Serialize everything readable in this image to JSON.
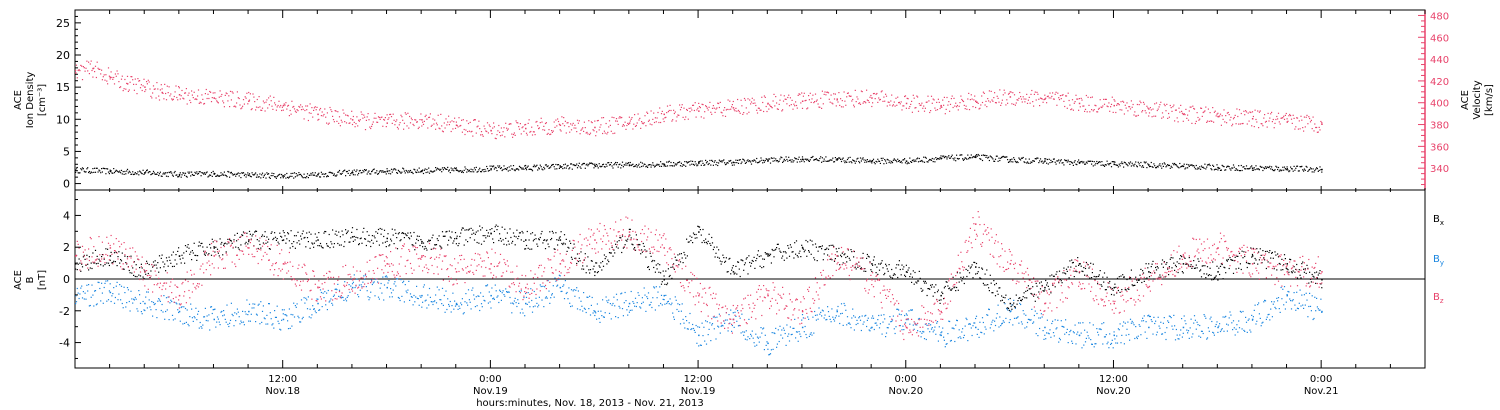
{
  "colors": {
    "axes": "#000000",
    "density": "#000000",
    "velocity": "#e8436b",
    "bx": "#000000",
    "by": "#1a86e0",
    "bz": "#e8436b",
    "zero_line": "#000000"
  },
  "chart_data": [
    {
      "type": "scatter",
      "panel": "top",
      "xaxis": {
        "tick_labels": [
          {
            "time": "12:00",
            "date": "Nov.18",
            "x": 12
          },
          {
            "time": "0:00",
            "date": "Nov.19",
            "x": 24
          },
          {
            "time": "12:00",
            "date": "Nov.19",
            "x": 36
          },
          {
            "time": "0:00",
            "date": "Nov.20",
            "x": 48
          },
          {
            "time": "12:00",
            "date": "Nov.20",
            "x": 60
          },
          {
            "time": "0:00",
            "date": "Nov.21",
            "x": 72
          }
        ],
        "xlim_hours_from_nov18_0000": [
          0,
          78
        ],
        "xlabel": "hours:minutes, Nov. 18, 2013 - Nov. 21, 2013"
      },
      "left_axis": {
        "label_lines": [
          "ACE",
          "Ion Density",
          "[cm⁻³]"
        ],
        "ylim": [
          -1,
          27
        ],
        "ticks": [
          0,
          5,
          10,
          15,
          20,
          25
        ]
      },
      "right_axis": {
        "label_lines": [
          "ACE",
          "Velocity",
          "[km/s]"
        ],
        "ylim": [
          320,
          485
        ],
        "ticks": [
          340,
          360,
          380,
          400,
          420,
          440,
          460,
          480
        ]
      },
      "series": [
        {
          "key": "density",
          "axis": "left",
          "x": [
            0,
            2,
            4,
            6,
            8,
            10,
            12,
            14,
            16,
            18,
            20,
            22,
            24,
            26,
            28,
            30,
            32,
            34,
            36,
            38,
            40,
            42,
            44,
            46,
            48,
            50,
            52,
            54,
            56,
            58,
            60,
            62,
            64,
            66,
            68,
            70,
            72
          ],
          "y": [
            2.2,
            2.0,
            1.8,
            1.5,
            1.6,
            1.4,
            1.3,
            1.5,
            1.8,
            2.0,
            2.1,
            2.2,
            2.4,
            2.5,
            2.7,
            2.9,
            3.0,
            3.1,
            3.3,
            3.4,
            3.7,
            3.9,
            3.8,
            3.6,
            3.6,
            4.0,
            4.2,
            3.8,
            3.6,
            3.3,
            3.1,
            3.0,
            2.8,
            2.6,
            2.5,
            2.4,
            2.3
          ],
          "spread": 0.45
        },
        {
          "key": "velocity",
          "axis": "right",
          "x": [
            0,
            1,
            2,
            3,
            4,
            5,
            6,
            8,
            10,
            12,
            14,
            16,
            18,
            20,
            22,
            24,
            26,
            28,
            30,
            32,
            34,
            36,
            38,
            40,
            42,
            44,
            46,
            48,
            50,
            52,
            54,
            56,
            58,
            60,
            62,
            64,
            66,
            68,
            70,
            72
          ],
          "y": [
            428,
            432,
            424,
            418,
            415,
            410,
            408,
            405,
            402,
            398,
            390,
            385,
            382,
            385,
            380,
            375,
            377,
            380,
            378,
            382,
            390,
            393,
            396,
            400,
            402,
            404,
            405,
            400,
            398,
            402,
            406,
            404,
            400,
            398,
            395,
            390,
            388,
            386,
            383,
            381
          ],
          "spread": 8
        }
      ]
    },
    {
      "type": "scatter",
      "panel": "bottom",
      "left_axis": {
        "label_lines": [
          "ACE",
          "B",
          "[nT]"
        ],
        "ylim": [
          -5.6,
          5.6
        ],
        "ticks": [
          -4,
          -2,
          0,
          2,
          4
        ]
      },
      "legend": {
        "placement": "right",
        "entries": [
          {
            "key": "bx",
            "label": "B",
            "sub": "x"
          },
          {
            "key": "by",
            "label": "B",
            "sub": "y"
          },
          {
            "key": "bz",
            "label": "B",
            "sub": "z"
          }
        ]
      },
      "series": [
        {
          "key": "bx",
          "x": [
            0,
            2,
            4,
            6,
            8,
            10,
            12,
            14,
            16,
            18,
            20,
            22,
            24,
            26,
            28,
            30,
            32,
            34,
            36,
            38,
            40,
            42,
            44,
            46,
            48,
            50,
            52,
            54,
            56,
            58,
            60,
            62,
            64,
            66,
            68,
            70,
            72
          ],
          "y": [
            1.0,
            1.5,
            0.5,
            1.5,
            2.0,
            2.5,
            2.5,
            2.5,
            2.7,
            2.6,
            2.4,
            2.6,
            2.9,
            2.5,
            2.5,
            0.5,
            2.8,
            0.0,
            3.0,
            0.5,
            1.5,
            2.0,
            1.5,
            1.0,
            0.5,
            -1.0,
            0.8,
            -1.5,
            -0.5,
            1.0,
            -0.5,
            0.5,
            1.0,
            0.5,
            1.5,
            1.0,
            0.0
          ],
          "spread": 0.6
        },
        {
          "key": "by",
          "x": [
            0,
            2,
            4,
            6,
            8,
            10,
            12,
            14,
            16,
            18,
            20,
            22,
            24,
            26,
            28,
            30,
            32,
            34,
            36,
            38,
            40,
            42,
            44,
            46,
            48,
            50,
            52,
            54,
            56,
            58,
            60,
            62,
            64,
            66,
            68,
            70,
            72
          ],
          "y": [
            -1.0,
            -0.8,
            -1.5,
            -2.0,
            -2.5,
            -2.0,
            -2.5,
            -1.5,
            -0.5,
            -0.5,
            -1.0,
            -1.5,
            -1.0,
            -1.5,
            -0.5,
            -2.0,
            -1.5,
            -1.0,
            -3.5,
            -2.5,
            -4.0,
            -3.0,
            -2.0,
            -3.0,
            -2.5,
            -3.5,
            -3.0,
            -2.0,
            -3.0,
            -3.5,
            -3.5,
            -3.0,
            -3.0,
            -3.0,
            -2.5,
            -1.0,
            -2.0
          ],
          "spread": 0.8
        },
        {
          "key": "bz",
          "x": [
            0,
            2,
            4,
            6,
            8,
            10,
            12,
            14,
            16,
            18,
            20,
            22,
            24,
            26,
            28,
            30,
            32,
            34,
            36,
            38,
            40,
            42,
            44,
            46,
            48,
            50,
            52,
            54,
            56,
            58,
            60,
            62,
            64,
            66,
            68,
            70,
            72
          ],
          "y": [
            1.5,
            2.0,
            0.5,
            -1.0,
            1.5,
            2.0,
            1.0,
            -0.5,
            0.0,
            1.0,
            1.5,
            0.5,
            1.0,
            -0.5,
            1.0,
            2.5,
            3.0,
            2.0,
            -1.0,
            -2.5,
            -1.0,
            -2.0,
            1.5,
            0.0,
            -3.0,
            -2.0,
            3.5,
            1.0,
            -1.5,
            0.5,
            -1.5,
            0.0,
            1.5,
            2.0,
            1.0,
            0.5,
            0.5
          ],
          "spread": 1.0
        }
      ]
    }
  ]
}
